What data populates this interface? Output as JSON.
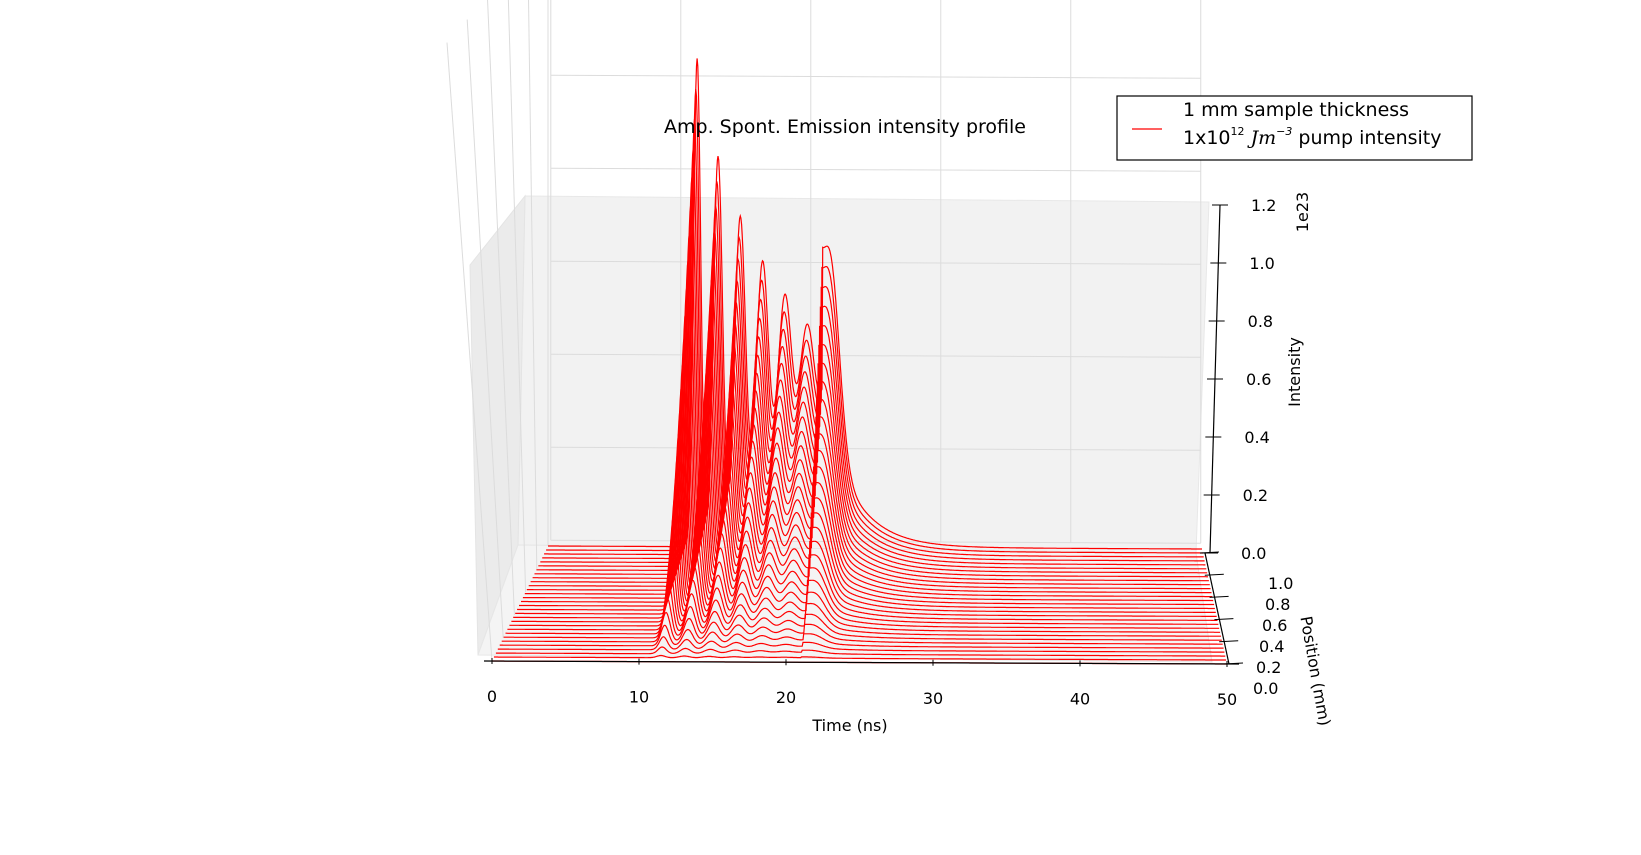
{
  "chart_data": {
    "type": "line",
    "title": "Amp. Spont. Emission intensity profile",
    "xlabel": "Time (ns)",
    "ylabel": "Position (mm)",
    "zlabel": "Intensity",
    "z_offset_text": "1e23",
    "xlim": [
      0,
      50
    ],
    "ylim": [
      0,
      1.0
    ],
    "zlim": [
      0,
      1.2
    ],
    "x_ticks": [
      "0",
      "10",
      "20",
      "30",
      "40",
      "50"
    ],
    "y_ticks": [
      "0.0",
      "0.2",
      "0.4",
      "0.6",
      "0.8",
      "1.0"
    ],
    "z_ticks": [
      "0.0",
      "0.2",
      "0.4",
      "0.6",
      "0.8",
      "1.0",
      "1.2"
    ],
    "grid": true,
    "legend": {
      "placement": "top-right",
      "line1": "1 mm sample thickness",
      "line2_prefix": "1x10",
      "line2_exp": "12",
      "line2_unit": "Jm",
      "line2_unit_exp": "−3",
      "line2_suffix": " pump intensity"
    },
    "series_color": "#ff0000",
    "num_series": 30,
    "peaks": [
      {
        "t": 11.4,
        "i": 1.05
      },
      {
        "t": 13.0,
        "i": 0.84
      },
      {
        "t": 14.7,
        "i": 0.71
      },
      {
        "t": 16.4,
        "i": 0.61
      },
      {
        "t": 18.1,
        "i": 0.53
      },
      {
        "t": 19.8,
        "i": 0.46
      },
      {
        "t": 21.6,
        "i": 0.39
      }
    ],
    "onset_time": 10.4
  }
}
